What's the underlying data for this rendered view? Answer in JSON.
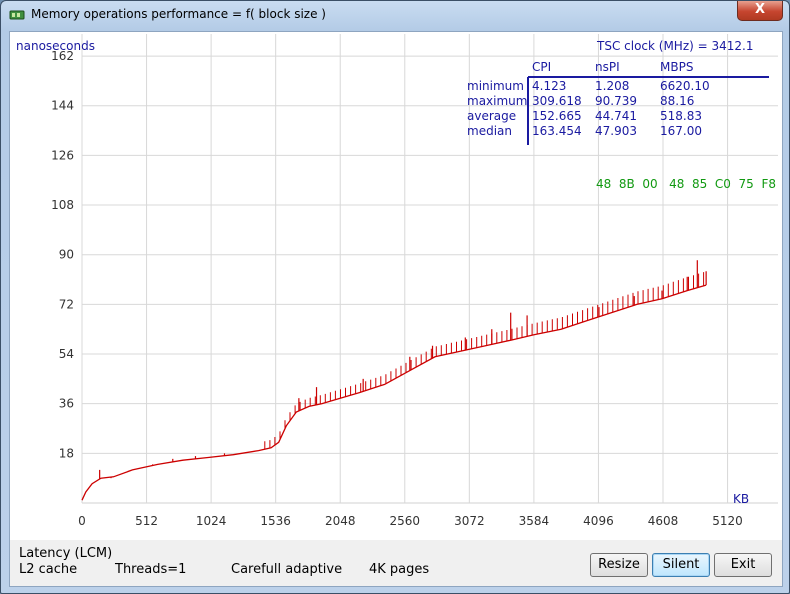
{
  "window": {
    "title": "Memory operations performance = f( block size )",
    "close_label": "X"
  },
  "chart_data": {
    "type": "line",
    "ylabel": "nanoseconds",
    "xlabel": "KB",
    "ylim": [
      0,
      170
    ],
    "xlim": [
      0,
      5520
    ],
    "y_ticks": [
      18,
      36,
      54,
      72,
      90,
      108,
      126,
      144,
      162
    ],
    "x_ticks": [
      0,
      512,
      1024,
      1536,
      2048,
      2560,
      3072,
      3584,
      4096,
      4608,
      5120
    ],
    "grid": true,
    "series": [
      {
        "name": "",
        "color": "#cc0000",
        "x": [
          0,
          30,
          80,
          150,
          250,
          400,
          600,
          800,
          1000,
          1200,
          1400,
          1500,
          1560,
          1620,
          1700,
          1800,
          1900,
          2048,
          2200,
          2400,
          2600,
          2800,
          3000,
          3200,
          3400,
          3584,
          3800,
          4000,
          4200,
          4400,
          4600,
          4800,
          4950
        ],
        "y": [
          1,
          4,
          7,
          9,
          9.5,
          12,
          14,
          15.5,
          16.5,
          17.5,
          19,
          20,
          22,
          28,
          33,
          35,
          36,
          38,
          40,
          43,
          48,
          53,
          55,
          57,
          59,
          61,
          63,
          66,
          69,
          72,
          74,
          77,
          79
        ]
      }
    ],
    "spikes": [
      [
        140,
        12
      ],
      [
        230,
        9
      ],
      [
        560,
        14
      ],
      [
        720,
        16
      ],
      [
        900,
        17
      ],
      [
        1130,
        18
      ],
      [
        1380,
        19
      ],
      [
        1720,
        38
      ],
      [
        1860,
        42
      ],
      [
        2230,
        45
      ],
      [
        2600,
        53
      ],
      [
        2780,
        57
      ],
      [
        3040,
        60
      ],
      [
        3250,
        63
      ],
      [
        3400,
        69
      ],
      [
        3530,
        68
      ],
      [
        4100,
        71
      ],
      [
        4380,
        75
      ],
      [
        4600,
        77
      ],
      [
        4800,
        82
      ],
      [
        4880,
        88
      ],
      [
        4950,
        84
      ]
    ],
    "tsc_label": "TSC clock (MHz)  = 3412.1",
    "stats": {
      "columns": [
        "CPI",
        "nsPI",
        "MBPS"
      ],
      "rows": [
        {
          "label": "minimum",
          "values": [
            "4.123",
            "1.208",
            "6620.10"
          ]
        },
        {
          "label": "maximum",
          "values": [
            "309.618",
            "90.739",
            "88.16"
          ]
        },
        {
          "label": "average",
          "values": [
            "152.665",
            "44.741",
            "518.83"
          ]
        },
        {
          "label": "median",
          "values": [
            "163.454",
            "47.903",
            "167.00"
          ]
        }
      ]
    },
    "opcode_bytes": "48  8B  00   48  85  C0  75  F8"
  },
  "status": {
    "line1": "Latency (LCM)",
    "cache": "L2 cache",
    "threads": "Threads=1",
    "mode": "Carefull adaptive",
    "pages": "4K pages"
  },
  "buttons": {
    "resize": "Resize",
    "silent": "Silent",
    "exit": "Exit"
  },
  "colors": {
    "curve": "#cc0000",
    "axis_text": "#1a1aa0",
    "opcode": "#119911"
  }
}
